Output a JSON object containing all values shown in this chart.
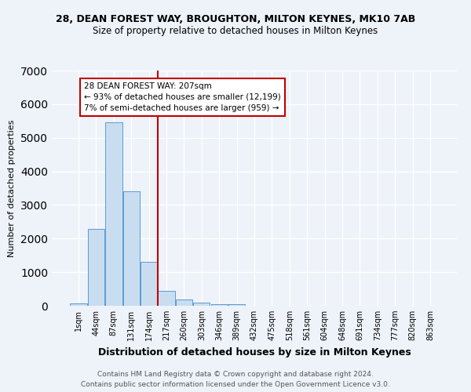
{
  "title1": "28, DEAN FOREST WAY, BROUGHTON, MILTON KEYNES, MK10 7AB",
  "title2": "Size of property relative to detached houses in Milton Keynes",
  "xlabel": "Distribution of detached houses by size in Milton Keynes",
  "ylabel": "Number of detached properties",
  "footer1": "Contains HM Land Registry data © Crown copyright and database right 2024.",
  "footer2": "Contains public sector information licensed under the Open Government Licence v3.0.",
  "bar_labels": [
    "1sqm",
    "44sqm",
    "87sqm",
    "131sqm",
    "174sqm",
    "217sqm",
    "260sqm",
    "303sqm",
    "346sqm",
    "389sqm",
    "432sqm",
    "475sqm",
    "518sqm",
    "561sqm",
    "604sqm",
    "648sqm",
    "691sqm",
    "734sqm",
    "777sqm",
    "820sqm",
    "863sqm"
  ],
  "bar_values": [
    75,
    2280,
    5450,
    3400,
    1310,
    440,
    185,
    90,
    55,
    40,
    0,
    0,
    0,
    0,
    0,
    0,
    0,
    0,
    0,
    0,
    0
  ],
  "bar_color": "#c9ddf0",
  "bar_edge_color": "#5b9bd5",
  "vline_color": "#c00000",
  "annotation_text": "28 DEAN FOREST WAY: 207sqm\n← 93% of detached houses are smaller (12,199)\n7% of semi-detached houses are larger (959) →",
  "annotation_box_color": "white",
  "annotation_box_edge_color": "#c00000",
  "ylim": [
    0,
    7000
  ],
  "background_color": "#eef2f9",
  "grid_color": "white",
  "title1_fontsize": 9,
  "title2_fontsize": 8.5,
  "xlabel_fontsize": 9,
  "ylabel_fontsize": 8,
  "tick_fontsize": 7,
  "footer_fontsize": 6.5,
  "annotation_fontsize": 7.5
}
